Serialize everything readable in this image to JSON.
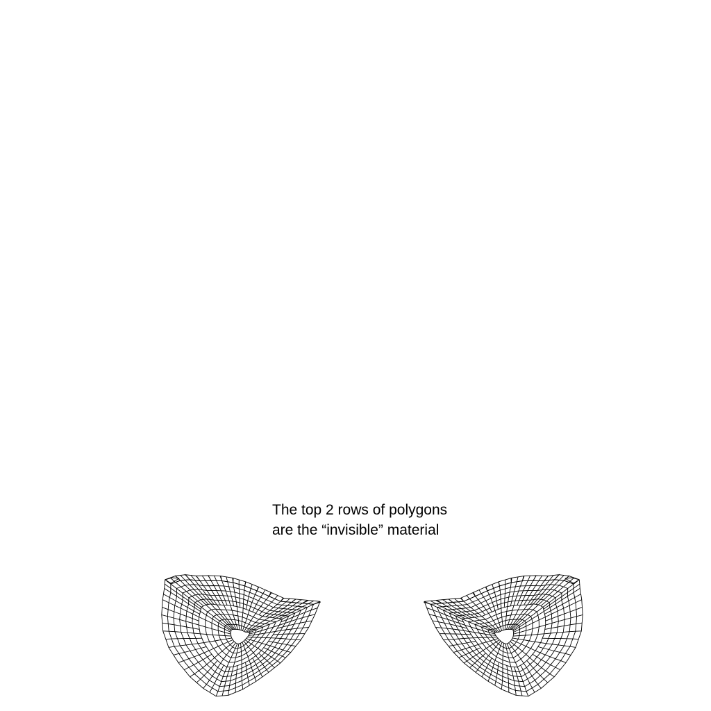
{
  "caption": {
    "line1": "The top 2 rows of polygons",
    "line2": "are the “invisible” material"
  },
  "colors": {
    "background": "#ffffff",
    "wireframe": "#000000",
    "text": "#000000"
  }
}
